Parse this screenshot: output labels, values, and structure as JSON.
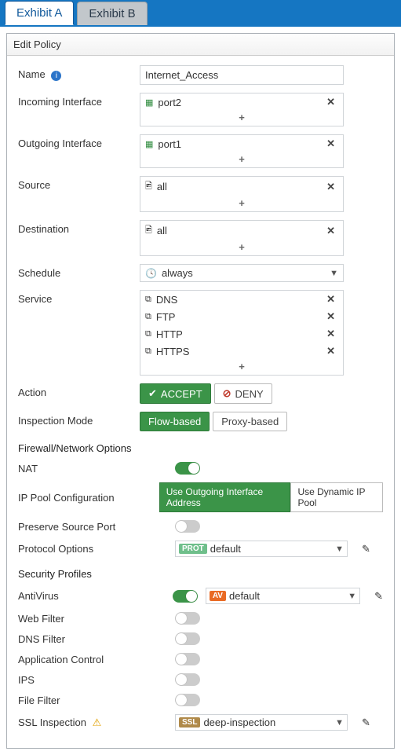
{
  "colors": {
    "header_bg": "#1576c2",
    "accent_green": "#3b9448",
    "badge_av": "#e96a24",
    "badge_prot": "#6fbf8b",
    "badge_ssl": "#b08a4a",
    "deny_red": "#c0392b",
    "border": "#d0d4d8"
  },
  "tabs": {
    "a": "Exhibit A",
    "b": "Exhibit B",
    "active": "a"
  },
  "panel": {
    "title": "Edit Policy"
  },
  "form": {
    "name_label": "Name",
    "name_value": "Internet_Access",
    "incoming_label": "Incoming Interface",
    "incoming_items": [
      {
        "text": "port2"
      }
    ],
    "outgoing_label": "Outgoing Interface",
    "outgoing_items": [
      {
        "text": "port1"
      }
    ],
    "source_label": "Source",
    "source_items": [
      {
        "text": "all"
      }
    ],
    "destination_label": "Destination",
    "destination_items": [
      {
        "text": "all"
      }
    ],
    "schedule_label": "Schedule",
    "schedule_value": "always",
    "service_label": "Service",
    "service_items": [
      {
        "text": "DNS"
      },
      {
        "text": "FTP"
      },
      {
        "text": "HTTP"
      },
      {
        "text": "HTTPS"
      }
    ],
    "action_label": "Action",
    "action_accept": "ACCEPT",
    "action_deny": "DENY",
    "action_selected": "accept",
    "inspection_label": "Inspection Mode",
    "inspection_flow": "Flow-based",
    "inspection_proxy": "Proxy-based",
    "inspection_selected": "flow"
  },
  "firewall": {
    "section_title": "Firewall/Network Options",
    "nat_label": "NAT",
    "nat_on": true,
    "ip_pool_label": "IP Pool Configuration",
    "ip_pool_outgoing": "Use Outgoing Interface Address",
    "ip_pool_dynamic": "Use Dynamic IP Pool",
    "ip_pool_selected": "outgoing",
    "preserve_label": "Preserve Source Port",
    "preserve_on": false,
    "protocol_label": "Protocol Options",
    "protocol_badge": "PROT",
    "protocol_value": "default"
  },
  "security": {
    "section_title": "Security Profiles",
    "items": [
      {
        "key": "av",
        "label": "AntiVirus",
        "on": true,
        "badge": "AV",
        "badge_class": "av",
        "value": "default",
        "editable": true
      },
      {
        "key": "wf",
        "label": "Web Filter",
        "on": false
      },
      {
        "key": "df",
        "label": "DNS Filter",
        "on": false
      },
      {
        "key": "ac",
        "label": "Application Control",
        "on": false
      },
      {
        "key": "ips",
        "label": "IPS",
        "on": false
      },
      {
        "key": "ff",
        "label": "File Filter",
        "on": false
      }
    ],
    "ssl_label": "SSL Inspection",
    "ssl_badge": "SSL",
    "ssl_value": "deep-inspection",
    "ssl_warning": true
  },
  "glyphs": {
    "plus": "+",
    "x": "✕",
    "check": "✔",
    "deny": "⊘",
    "chev": "▼",
    "pencil": "✎",
    "warn": "⚠"
  }
}
